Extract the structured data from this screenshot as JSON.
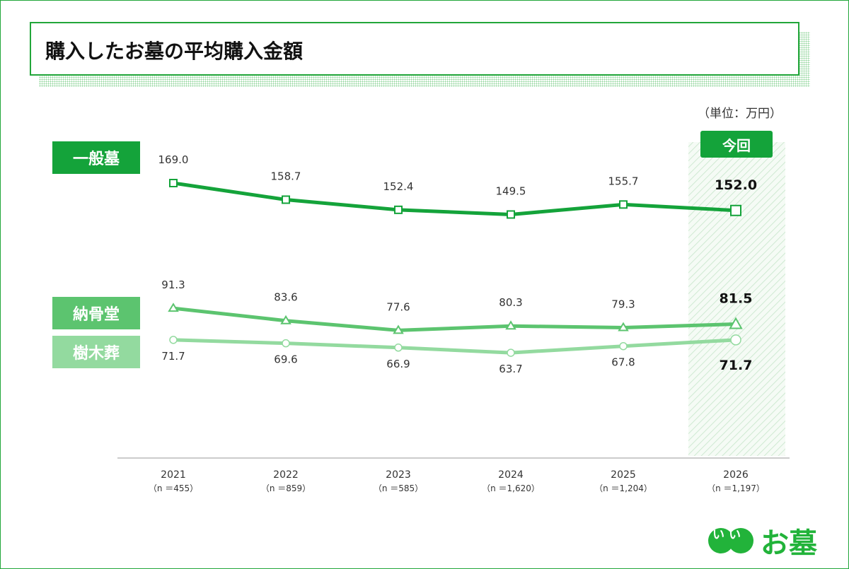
{
  "title": "購入したお墓の平均購入金額",
  "unit_label": "（単位：万円）",
  "current_badge": "今回",
  "logo_text": "いいお墓",
  "colors": {
    "general": "#14a33a",
    "nokotsudo": "#5cc46f",
    "jumokuso": "#93da9f"
  },
  "chart_data": {
    "type": "line",
    "categories": [
      "2021",
      "2022",
      "2023",
      "2024",
      "2025",
      "2026"
    ],
    "sample_sizes": [
      "（n ＝455）",
      "（n ＝859）",
      "（n ＝585）",
      "（n ＝1,620）",
      "（n ＝1,204）",
      "（n ＝1,197）"
    ],
    "highlighted_category": "2026",
    "grid": false,
    "legend_placement": "left",
    "series": [
      {
        "name": "一般墓",
        "marker": "square",
        "values": [
          169.0,
          158.7,
          152.4,
          149.5,
          155.7,
          152.0
        ],
        "labels": [
          "169.0",
          "158.7",
          "152.4",
          "149.5",
          "155.7",
          "152.0"
        ]
      },
      {
        "name": "納骨堂",
        "marker": "triangle",
        "values": [
          91.3,
          83.6,
          77.6,
          80.3,
          79.3,
          81.5
        ],
        "labels": [
          "91.3",
          "83.6",
          "77.6",
          "80.3",
          "79.3",
          "81.5"
        ]
      },
      {
        "name": "樹木葬",
        "marker": "circle",
        "values": [
          71.7,
          69.6,
          66.9,
          63.7,
          67.8,
          71.7
        ],
        "labels": [
          "71.7",
          "69.6",
          "66.9",
          "63.7",
          "67.8",
          "71.7"
        ]
      }
    ]
  }
}
